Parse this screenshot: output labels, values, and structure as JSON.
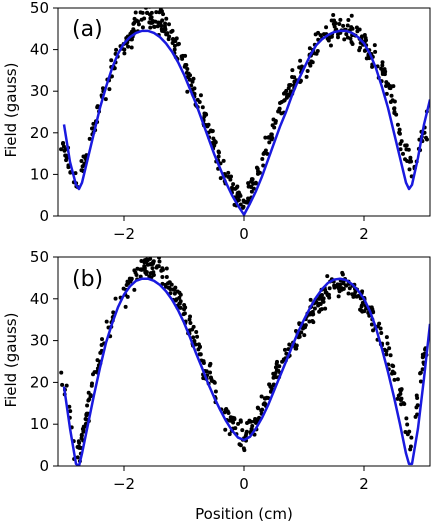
{
  "figure": {
    "xlabel": "Position (cm)"
  },
  "chart_data": [
    {
      "type": "scatter",
      "panel_label": "(a)",
      "xlabel": "",
      "ylabel": "Field (gauss)",
      "xlim": [
        -3.1,
        3.1
      ],
      "ylim": [
        0,
        50
      ],
      "xticks": [
        -2,
        0,
        2
      ],
      "yticks": [
        0,
        10,
        20,
        30,
        40,
        50
      ],
      "grid": false,
      "series": [
        {
          "kind": "points",
          "color": "#000000",
          "x": [
            -3.0,
            -2.9,
            -2.8,
            -2.7,
            -2.6,
            -2.5,
            -2.4,
            -2.3,
            -2.2,
            -2.1,
            -2.0,
            -1.9,
            -1.8,
            -1.7,
            -1.6,
            -1.5,
            -1.4,
            -1.3,
            -1.2,
            -1.1,
            -1.0,
            -0.9,
            -0.8,
            -0.7,
            -0.6,
            -0.5,
            -0.4,
            -0.3,
            -0.2,
            -0.1,
            0.0,
            0.1,
            0.2,
            0.3,
            0.4,
            0.5,
            0.6,
            0.7,
            0.8,
            0.9,
            1.0,
            1.1,
            1.2,
            1.3,
            1.4,
            1.5,
            1.6,
            1.7,
            1.8,
            1.9,
            2.0,
            2.1,
            2.2,
            2.3,
            2.4,
            2.5,
            2.6,
            2.7,
            2.8,
            2.9,
            3.0
          ],
          "y": [
            16.5,
            12,
            7.5,
            11,
            17,
            21.5,
            27,
            31,
            34.5,
            38,
            40,
            43.5,
            46.5,
            48,
            48.5,
            47,
            46.5,
            44.5,
            42.5,
            40,
            36.5,
            32.5,
            28.5,
            24.5,
            20.5,
            16.5,
            13,
            9.5,
            7,
            5,
            3.5,
            6,
            9.5,
            13.5,
            17,
            21.5,
            25.5,
            29,
            31.5,
            33.5,
            36,
            38.5,
            40.5,
            43,
            44,
            45,
            45,
            44.5,
            44,
            43,
            41.5,
            39,
            37.5,
            35,
            31.5,
            27,
            20,
            15.5,
            11,
            15,
            21
          ]
        },
        {
          "kind": "fit-line",
          "color": "#1a1adf",
          "x": [
            -3.0,
            -2.9,
            -2.8,
            -2.75,
            -2.7,
            -2.6,
            -2.5,
            -2.4,
            -2.3,
            -2.2,
            -2.1,
            -2.0,
            -1.9,
            -1.8,
            -1.7,
            -1.6,
            -1.5,
            -1.4,
            -1.3,
            -1.2,
            -1.1,
            -1.0,
            -0.9,
            -0.8,
            -0.7,
            -0.6,
            -0.5,
            -0.4,
            -0.3,
            -0.2,
            -0.1,
            0.0,
            0.1,
            0.2,
            0.3,
            0.4,
            0.5,
            0.6,
            0.7,
            0.8,
            0.9,
            1.0,
            1.1,
            1.2,
            1.3,
            1.4,
            1.5,
            1.6,
            1.7,
            1.8,
            1.9,
            2.0,
            2.1,
            2.2,
            2.3,
            2.4,
            2.5,
            2.6,
            2.7,
            2.75,
            2.8,
            2.9,
            3.0,
            3.1
          ],
          "y": [
            22,
            13,
            7.5,
            6.5,
            8,
            14,
            20,
            26,
            31,
            35.5,
            39,
            41.5,
            43,
            44,
            44.5,
            44.5,
            44,
            43,
            41.5,
            39.5,
            37,
            34,
            30.5,
            27,
            23,
            19,
            15,
            11.5,
            8,
            5,
            2.5,
            0.3,
            3,
            6,
            9.5,
            13.5,
            17.5,
            21.5,
            25,
            29,
            32.5,
            35.5,
            38.5,
            41,
            42.5,
            43.5,
            44.2,
            44.5,
            44.5,
            44,
            43,
            41.5,
            39,
            35.5,
            31,
            26,
            20,
            14,
            8,
            6.5,
            7.5,
            14,
            22,
            28
          ]
        }
      ]
    },
    {
      "type": "scatter",
      "panel_label": "(b)",
      "xlabel": "Position (cm)",
      "ylabel": "Field (gauss)",
      "xlim": [
        -3.1,
        3.1
      ],
      "ylim": [
        0,
        50
      ],
      "xticks": [
        -2,
        0,
        2
      ],
      "yticks": [
        0,
        10,
        20,
        30,
        40,
        50
      ],
      "grid": false,
      "series": [
        {
          "kind": "points",
          "color": "#000000",
          "x": [
            -3.0,
            -2.9,
            -2.8,
            -2.7,
            -2.6,
            -2.5,
            -2.4,
            -2.3,
            -2.2,
            -2.1,
            -2.0,
            -1.9,
            -1.8,
            -1.7,
            -1.6,
            -1.5,
            -1.4,
            -1.3,
            -1.2,
            -1.1,
            -1.0,
            -0.9,
            -0.8,
            -0.7,
            -0.6,
            -0.5,
            -0.4,
            -0.3,
            -0.2,
            -0.1,
            0.0,
            0.1,
            0.2,
            0.3,
            0.4,
            0.5,
            0.6,
            0.7,
            0.8,
            0.9,
            1.0,
            1.1,
            1.2,
            1.3,
            1.4,
            1.5,
            1.6,
            1.7,
            1.8,
            1.9,
            2.0,
            2.1,
            2.2,
            2.3,
            2.4,
            2.5,
            2.6,
            2.7,
            2.8,
            2.9,
            3.0
          ],
          "y": [
            20,
            12,
            1.5,
            6,
            14,
            20,
            26.5,
            31.5,
            35,
            38.5,
            41,
            43,
            45.5,
            47.5,
            48.5,
            47.5,
            47,
            45,
            42,
            40,
            37,
            33,
            29.5,
            25.5,
            22,
            18.5,
            15,
            12,
            10,
            8.5,
            7,
            8.5,
            11,
            13.5,
            16.5,
            20,
            23.5,
            27,
            29.5,
            32,
            34,
            36.5,
            38.5,
            40.5,
            41.5,
            42.5,
            43,
            43.5,
            42.5,
            40.5,
            38.5,
            36,
            34,
            31,
            27,
            22,
            17,
            11.5,
            5,
            18,
            27
          ]
        },
        {
          "kind": "fit-line",
          "color": "#1a1adf",
          "x": [
            -3.0,
            -2.9,
            -2.8,
            -2.75,
            -2.7,
            -2.6,
            -2.5,
            -2.4,
            -2.3,
            -2.2,
            -2.1,
            -2.0,
            -1.9,
            -1.8,
            -1.7,
            -1.6,
            -1.5,
            -1.4,
            -1.3,
            -1.2,
            -1.1,
            -1.0,
            -0.9,
            -0.8,
            -0.7,
            -0.6,
            -0.5,
            -0.4,
            -0.3,
            -0.2,
            -0.1,
            0.0,
            0.1,
            0.2,
            0.3,
            0.4,
            0.5,
            0.6,
            0.7,
            0.8,
            0.9,
            1.0,
            1.1,
            1.2,
            1.3,
            1.4,
            1.5,
            1.6,
            1.7,
            1.8,
            1.9,
            2.0,
            2.1,
            2.2,
            2.3,
            2.4,
            2.5,
            2.6,
            2.7,
            2.75,
            2.8,
            2.9,
            3.0,
            3.1
          ],
          "y": [
            19,
            9,
            0.5,
            0,
            3,
            10,
            17,
            23.5,
            29.5,
            34,
            38,
            41,
            43,
            44.3,
            44.8,
            44.8,
            44.3,
            43.3,
            41.8,
            39.8,
            37.3,
            34.3,
            30.8,
            27,
            23.5,
            19.8,
            16.5,
            13.5,
            10.8,
            8.5,
            6.8,
            6.2,
            7,
            9,
            11.5,
            14.5,
            18,
            21.5,
            25,
            28.5,
            32,
            35,
            37.8,
            40.3,
            42.3,
            43.8,
            44.6,
            44.8,
            44.5,
            43.5,
            42,
            40,
            37,
            33,
            28,
            22.5,
            16.5,
            10,
            3,
            0.5,
            0.5,
            9,
            21,
            34
          ]
        }
      ]
    }
  ]
}
